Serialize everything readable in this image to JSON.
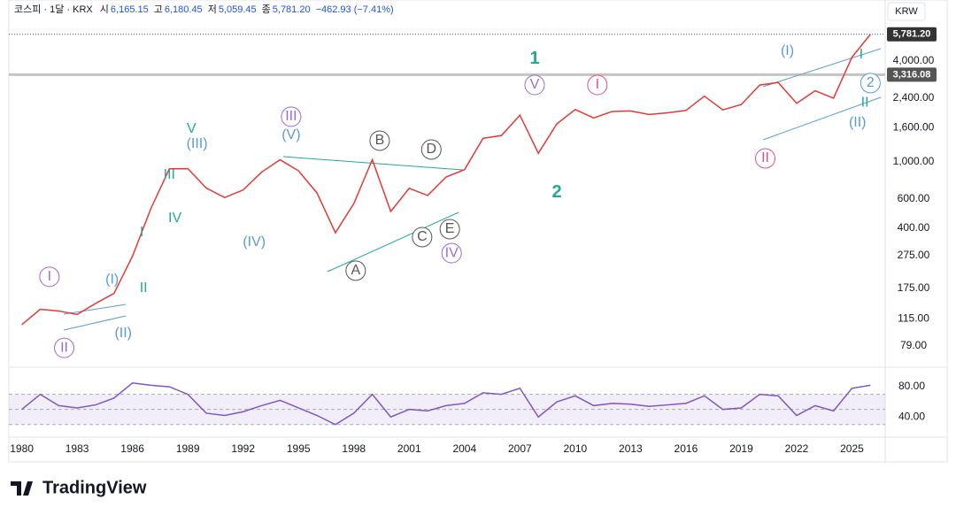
{
  "chart_data": [
    {
      "type": "line",
      "title": "코스피 · 1달 · KRX",
      "ohlc_labels": [
        "시",
        "고",
        "저",
        "종"
      ],
      "ohlc_values": [
        {
          "value": 6165.15,
          "label": "6,165.15"
        },
        {
          "value": 6180.45,
          "label": "6,180.45"
        },
        {
          "value": 5059.45,
          "label": "5,059.45"
        },
        {
          "value": 5781.2,
          "label": "5,781.20"
        }
      ],
      "change": "−462.93 (−7.41%)",
      "currency": "KRW",
      "log_scale": true,
      "xlim": [
        1979.3,
        2026.8
      ],
      "xticks": [
        1980,
        1983,
        1986,
        1989,
        1992,
        1995,
        1998,
        2001,
        2004,
        2007,
        2010,
        2013,
        2016,
        2019,
        2022,
        2025
      ],
      "ylim": [
        59,
        9270
      ],
      "yticks": [
        {
          "value": 79,
          "label": "79.00"
        },
        {
          "value": 115,
          "label": "115.00"
        },
        {
          "value": 175,
          "label": "175.00"
        },
        {
          "value": 275,
          "label": "275.00"
        },
        {
          "value": 400,
          "label": "400.00"
        },
        {
          "value": 600,
          "label": "600.00"
        },
        {
          "value": 1000,
          "label": "1,000.00"
        },
        {
          "value": 1600,
          "label": "1,600.00"
        },
        {
          "value": 2400,
          "label": "2,400.00"
        },
        {
          "value": 4000,
          "label": "4,000.00"
        }
      ],
      "price_lines": [
        {
          "value": 5781.2,
          "label": "5,781.20",
          "color": "#555555"
        },
        {
          "value": 3316.08,
          "label": "3,316.08",
          "color": "#9e9e9e"
        }
      ],
      "x": [
        1980,
        1981,
        1982,
        1983,
        1984,
        1985,
        1986,
        1987,
        1988,
        1989,
        1990,
        1991,
        1992,
        1993,
        1994,
        1995,
        1996,
        1997,
        1998,
        1999,
        2000,
        2001,
        2002,
        2003,
        2004,
        2005,
        2006,
        2007,
        2008,
        2009,
        2010,
        2011,
        2012,
        2013,
        2014,
        2015,
        2016,
        2017,
        2018,
        2019,
        2020,
        2021,
        2022,
        2023,
        2024,
        2025,
        2026
      ],
      "series": [
        {
          "color": "#e53935",
          "values": [
            106,
            131,
            128,
            122,
            142,
            163,
            272,
            525,
            907,
            909,
            696,
            610,
            678,
            866,
            1027,
            882,
            651,
            376,
            562,
            1028,
            504,
            693,
            628,
            810,
            896,
            1379,
            1434,
            1897,
            1124,
            1683,
            2051,
            1826,
            1997,
            2011,
            1916,
            1961,
            2026,
            2467,
            2041,
            2198,
            2873,
            2977,
            2236,
            2655,
            2399,
            4214,
            5781
          ]
        }
      ],
      "annotations": [
        {
          "label": "I",
          "x": 1981.5,
          "y": 205,
          "color": "#9c6ad6",
          "circle": true
        },
        {
          "label": "II",
          "x": 1982.3,
          "y": 77,
          "color": "#9c6ad6",
          "circle": true
        },
        {
          "label": "(I)",
          "x": 1984.9,
          "y": 197,
          "color": "#5b9bd5",
          "circle": false
        },
        {
          "label": "(II)",
          "x": 1985.5,
          "y": 94,
          "color": "#5b9bd5",
          "circle": false
        },
        {
          "label": "I",
          "x": 1986.5,
          "y": 377,
          "color": "#26a69a",
          "circle": false
        },
        {
          "label": "II",
          "x": 1986.6,
          "y": 175,
          "color": "#26a69a",
          "circle": false
        },
        {
          "label": "III",
          "x": 1988.0,
          "y": 830,
          "color": "#26a69a",
          "circle": false
        },
        {
          "label": "IV",
          "x": 1988.3,
          "y": 457,
          "color": "#26a69a",
          "circle": false
        },
        {
          "label": "V",
          "x": 1989.2,
          "y": 1566,
          "color": "#26a69a",
          "circle": false
        },
        {
          "label": "(III)",
          "x": 1989.5,
          "y": 1274,
          "color": "#5b9bd5",
          "circle": false
        },
        {
          "label": "(IV)",
          "x": 1992.6,
          "y": 329,
          "color": "#5b9bd5",
          "circle": false
        },
        {
          "label": "III",
          "x": 1994.6,
          "y": 1858,
          "color": "#9c6ad6",
          "circle": true
        },
        {
          "label": "(V)",
          "x": 1994.6,
          "y": 1438,
          "color": "#5b9bd5",
          "circle": false
        },
        {
          "label": "A",
          "x": 1998.1,
          "y": 223,
          "color": "#555555",
          "circle": true
        },
        {
          "label": "B",
          "x": 1999.4,
          "y": 1336,
          "color": "#555555",
          "circle": true
        },
        {
          "label": "C",
          "x": 2001.7,
          "y": 354,
          "color": "#555555",
          "circle": true
        },
        {
          "label": "D",
          "x": 2002.2,
          "y": 1183,
          "color": "#555555",
          "circle": true
        },
        {
          "label": "E",
          "x": 2003.2,
          "y": 395,
          "color": "#555555",
          "circle": true
        },
        {
          "label": "IV",
          "x": 2003.3,
          "y": 284,
          "color": "#9c6ad6",
          "circle": true
        },
        {
          "label": "V",
          "x": 2007.8,
          "y": 2877,
          "color": "#9c6ad6",
          "circle": true
        },
        {
          "label": "1",
          "x": 2007.8,
          "y": 4102,
          "color": "#26a69a",
          "circle": false,
          "big": true
        },
        {
          "label": "2",
          "x": 2009.0,
          "y": 652,
          "color": "#26a69a",
          "circle": false,
          "big": true
        },
        {
          "label": "I",
          "x": 2011.2,
          "y": 2877,
          "color": "#e8507a",
          "circle": true
        },
        {
          "label": "II",
          "x": 2020.3,
          "y": 1047,
          "color": "#e8507a",
          "circle": true
        },
        {
          "label": "(I)",
          "x": 2021.5,
          "y": 4571,
          "color": "#5b9bd5",
          "circle": false
        },
        {
          "label": "(II)",
          "x": 2025.3,
          "y": 1706,
          "color": "#5b9bd5",
          "circle": false
        },
        {
          "label": "I",
          "x": 2025.5,
          "y": 4355,
          "color": "#26a69a",
          "circle": false
        },
        {
          "label": "II",
          "x": 2025.7,
          "y": 2254,
          "color": "#26a69a",
          "circle": false
        },
        {
          "label": "2",
          "x": 2026.0,
          "y": 2951,
          "color": "#5b9bd5",
          "circle": true
        }
      ]
    },
    {
      "type": "line",
      "ylim": [
        18,
        100
      ],
      "yticks": [
        {
          "value": 40,
          "label": "40.00"
        },
        {
          "value": 80,
          "label": "80.00"
        }
      ],
      "levels": [
        30,
        50,
        70
      ],
      "x": [
        1980,
        1981,
        1982,
        1983,
        1984,
        1985,
        1986,
        1987,
        1988,
        1989,
        1990,
        1991,
        1992,
        1993,
        1994,
        1995,
        1996,
        1997,
        1998,
        1999,
        2000,
        2001,
        2002,
        2003,
        2004,
        2005,
        2006,
        2007,
        2008,
        2009,
        2010,
        2011,
        2012,
        2013,
        2014,
        2015,
        2016,
        2017,
        2018,
        2019,
        2020,
        2021,
        2022,
        2023,
        2024,
        2025,
        2026
      ],
      "series": [
        {
          "color": "#7e57c2",
          "values": [
            50,
            70,
            55,
            52,
            56,
            65,
            85,
            82,
            80,
            70,
            45,
            42,
            47,
            55,
            62,
            52,
            42,
            30,
            45,
            70,
            40,
            50,
            48,
            55,
            58,
            72,
            70,
            78,
            40,
            60,
            68,
            55,
            58,
            57,
            54,
            56,
            58,
            68,
            50,
            52,
            70,
            68,
            42,
            55,
            48,
            78,
            82
          ]
        }
      ]
    }
  ],
  "brand": "TradingView"
}
